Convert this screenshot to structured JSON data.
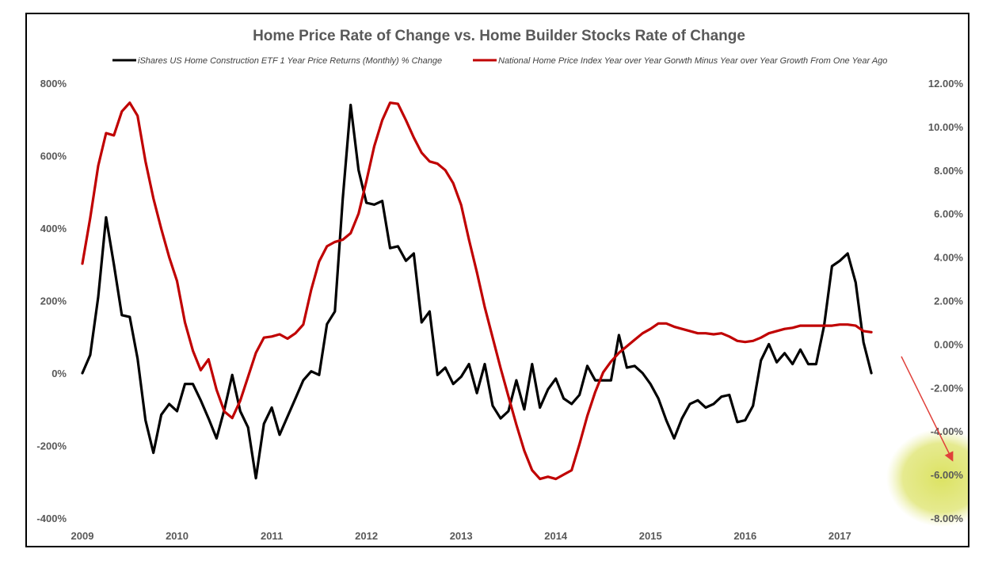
{
  "chart_data": {
    "type": "line",
    "title": "Home Price Rate of Change vs. Home Builder Stocks Rate of Change",
    "legend_position": "top",
    "series": [
      {
        "name": "iShares US Home Construction ETF 1 Year Price Returns (Monthly) % Change",
        "axis": "left",
        "color": "#000000",
        "x": [
          2009.0,
          2009.083,
          2009.167,
          2009.25,
          2009.333,
          2009.417,
          2009.5,
          2009.583,
          2009.667,
          2009.75,
          2009.833,
          2009.917,
          2010.0,
          2010.083,
          2010.167,
          2010.25,
          2010.333,
          2010.417,
          2010.5,
          2010.583,
          2010.667,
          2010.75,
          2010.833,
          2010.917,
          2011.0,
          2011.083,
          2011.167,
          2011.25,
          2011.333,
          2011.417,
          2011.5,
          2011.583,
          2011.667,
          2011.75,
          2011.833,
          2011.917,
          2012.0,
          2012.083,
          2012.167,
          2012.25,
          2012.333,
          2012.417,
          2012.5,
          2012.583,
          2012.667,
          2012.75,
          2012.833,
          2012.917,
          2013.0,
          2013.083,
          2013.167,
          2013.25,
          2013.333,
          2013.417,
          2013.5,
          2013.583,
          2013.667,
          2013.75,
          2013.833,
          2013.917,
          2014.0,
          2014.083,
          2014.167,
          2014.25,
          2014.333,
          2014.417,
          2014.5,
          2014.583,
          2014.667,
          2014.75,
          2014.833,
          2014.917,
          2015.0,
          2015.083,
          2015.167,
          2015.25,
          2015.333,
          2015.417,
          2015.5,
          2015.583,
          2015.667,
          2015.75,
          2015.833,
          2015.917,
          2016.0,
          2016.083,
          2016.167,
          2016.25,
          2016.333,
          2016.417,
          2016.5,
          2016.583,
          2016.667,
          2016.75,
          2016.833,
          2016.917,
          2017.0,
          2017.083,
          2017.167,
          2017.25,
          2017.333
        ],
        "values": [
          0,
          50,
          210,
          430,
          300,
          160,
          155,
          40,
          -130,
          -220,
          -115,
          -85,
          -105,
          -30,
          -30,
          -75,
          -125,
          -180,
          -100,
          -5,
          -105,
          -150,
          -290,
          -140,
          -95,
          -170,
          -120,
          -70,
          -20,
          5,
          -5,
          135,
          170,
          480,
          740,
          560,
          470,
          465,
          475,
          345,
          350,
          310,
          330,
          140,
          170,
          -5,
          15,
          -30,
          -10,
          25,
          -55,
          25,
          -90,
          -125,
          -105,
          -20,
          -100,
          25,
          -95,
          -45,
          -15,
          -70,
          -85,
          -60,
          20,
          -20,
          -20,
          -20,
          105,
          15,
          20,
          0,
          -30,
          -70,
          -130,
          -180,
          -125,
          -85,
          -75,
          -95,
          -85,
          -65,
          -60,
          -135,
          -130,
          -90,
          35,
          80,
          30,
          55,
          25,
          65,
          25,
          25,
          130,
          295,
          310,
          330,
          250,
          85,
          0
        ]
      },
      {
        "name": "National Home Price Index Year over Year Gorwth Minus Year over Year Growth From One Year Ago",
        "axis": "right",
        "color": "#c00000",
        "x": [
          2009.0,
          2009.083,
          2009.167,
          2009.25,
          2009.333,
          2009.417,
          2009.5,
          2009.583,
          2009.667,
          2009.75,
          2009.833,
          2009.917,
          2010.0,
          2010.083,
          2010.167,
          2010.25,
          2010.333,
          2010.417,
          2010.5,
          2010.583,
          2010.667,
          2010.75,
          2010.833,
          2010.917,
          2011.0,
          2011.083,
          2011.167,
          2011.25,
          2011.333,
          2011.417,
          2011.5,
          2011.583,
          2011.667,
          2011.75,
          2011.833,
          2011.917,
          2012.0,
          2012.083,
          2012.167,
          2012.25,
          2012.333,
          2012.417,
          2012.5,
          2012.583,
          2012.667,
          2012.75,
          2012.833,
          2012.917,
          2013.0,
          2013.083,
          2013.167,
          2013.25,
          2013.333,
          2013.417,
          2013.5,
          2013.583,
          2013.667,
          2013.75,
          2013.833,
          2013.917,
          2014.0,
          2014.083,
          2014.167,
          2014.25,
          2014.333,
          2014.417,
          2014.5,
          2014.583,
          2014.667,
          2014.75,
          2014.833,
          2014.917,
          2015.0,
          2015.083,
          2015.167,
          2015.25,
          2015.333,
          2015.417,
          2015.5,
          2015.583,
          2015.667,
          2015.75,
          2015.833,
          2015.917,
          2016.0,
          2016.083,
          2016.167,
          2016.25,
          2016.333,
          2016.417,
          2016.5,
          2016.583,
          2016.667,
          2016.75,
          2016.833,
          2016.917,
          2017.0,
          2017.083,
          2017.167,
          2017.25,
          2017.333
        ],
        "values": [
          3.7,
          5.8,
          8.2,
          9.7,
          9.6,
          10.7,
          11.1,
          10.5,
          8.4,
          6.7,
          5.3,
          4.0,
          2.9,
          1.0,
          -0.3,
          -1.2,
          -0.7,
          -2.1,
          -3.1,
          -3.4,
          -2.6,
          -1.5,
          -0.4,
          0.3,
          0.35,
          0.45,
          0.25,
          0.5,
          0.9,
          2.5,
          3.8,
          4.5,
          4.7,
          4.8,
          5.1,
          6.0,
          7.5,
          9.1,
          10.3,
          11.1,
          11.05,
          10.3,
          9.5,
          8.8,
          8.4,
          8.3,
          8.0,
          7.4,
          6.4,
          4.8,
          3.3,
          1.7,
          0.3,
          -1.1,
          -2.4,
          -3.7,
          -4.9,
          -5.8,
          -6.2,
          -6.1,
          -6.2,
          -6.0,
          -5.8,
          -4.6,
          -3.3,
          -2.2,
          -1.3,
          -0.8,
          -0.4,
          -0.1,
          0.2,
          0.5,
          0.7,
          0.95,
          0.95,
          0.8,
          0.7,
          0.6,
          0.5,
          0.5,
          0.45,
          0.5,
          0.35,
          0.15,
          0.1,
          0.15,
          0.3,
          0.5,
          0.6,
          0.7,
          0.75,
          0.85,
          0.85,
          0.85,
          0.85,
          0.85,
          0.9,
          0.9,
          0.85,
          0.6,
          0.55
        ]
      }
    ],
    "x_ticks": [
      "2009",
      "2010",
      "2011",
      "2012",
      "2013",
      "2014",
      "2015",
      "2016",
      "2017"
    ],
    "x_range": [
      2009,
      2017.7
    ],
    "y_left": {
      "range": [
        -400,
        800
      ],
      "ticks": [
        "800%",
        "600%",
        "400%",
        "200%",
        "0%",
        "-200%",
        "-400%"
      ]
    },
    "y_right": {
      "range": [
        -8,
        12
      ],
      "ticks": [
        "12.00%",
        "10.00%",
        "8.00%",
        "6.00%",
        "4.00%",
        "2.00%",
        "0.00%",
        "-2.00%",
        "-4.00%",
        "-6.00%",
        "-8.00%"
      ]
    },
    "grid": false,
    "annotations": [
      {
        "type": "arrow",
        "color": "#e0403a",
        "description": "arrow pointing down-right toward -6.00%"
      },
      {
        "type": "highlight",
        "color": "#d4dc50",
        "target": "-6.00%"
      }
    ]
  }
}
